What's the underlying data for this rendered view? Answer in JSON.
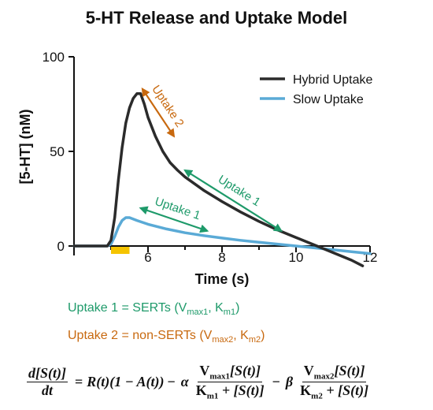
{
  "colors": {
    "hybrid": "#2b2b2b",
    "slow": "#5aaad6",
    "uptake1": "#1e9a6a",
    "uptake2": "#c8690f",
    "stim_bar": "#f5c400"
  },
  "chart_data": {
    "type": "line",
    "title": "5-HT Release and Uptake Model",
    "xlabel": "Time (s)",
    "ylabel": "[5-HT] (nM)",
    "xlim": [
      4,
      12
    ],
    "ylim": [
      -5,
      100
    ],
    "x_ticks": [
      "6",
      "8",
      "10",
      "12"
    ],
    "y_ticks": [
      "0",
      "50",
      "100"
    ],
    "legend_position": "top-right",
    "series": [
      {
        "name": "Hybrid Uptake",
        "color": "#2b2b2b",
        "points": [
          [
            4,
            0
          ],
          [
            4.9,
            0
          ],
          [
            5.0,
            3
          ],
          [
            5.1,
            15
          ],
          [
            5.2,
            35
          ],
          [
            5.3,
            52
          ],
          [
            5.4,
            65
          ],
          [
            5.5,
            73
          ],
          [
            5.6,
            78
          ],
          [
            5.7,
            80.5
          ],
          [
            5.8,
            80.5
          ],
          [
            5.9,
            75
          ],
          [
            6.0,
            68
          ],
          [
            6.2,
            58
          ],
          [
            6.4,
            50
          ],
          [
            6.6,
            44
          ],
          [
            6.8,
            40
          ],
          [
            7.0,
            36.5
          ],
          [
            7.5,
            29.5
          ],
          [
            8.0,
            23.5
          ],
          [
            8.5,
            18
          ],
          [
            9.0,
            13
          ],
          [
            9.5,
            8.5
          ],
          [
            10.0,
            4.5
          ],
          [
            10.5,
            0.5
          ],
          [
            11.0,
            -3.5
          ],
          [
            11.5,
            -7.5
          ],
          [
            11.8,
            -10.5
          ]
        ]
      },
      {
        "name": "Slow Uptake",
        "color": "#5aaad6",
        "points": [
          [
            4,
            0
          ],
          [
            4.9,
            0
          ],
          [
            5.0,
            1
          ],
          [
            5.1,
            5
          ],
          [
            5.2,
            10
          ],
          [
            5.3,
            13.5
          ],
          [
            5.4,
            15
          ],
          [
            5.5,
            15
          ],
          [
            5.7,
            13.5
          ],
          [
            6.0,
            11.5
          ],
          [
            6.5,
            9
          ],
          [
            7.0,
            7
          ],
          [
            7.5,
            5.5
          ],
          [
            8.0,
            4.2
          ],
          [
            8.5,
            3
          ],
          [
            9.0,
            2
          ],
          [
            9.5,
            1
          ],
          [
            10.0,
            0
          ],
          [
            10.5,
            -1
          ],
          [
            11.0,
            -2
          ],
          [
            11.5,
            -3
          ],
          [
            12.0,
            -4
          ]
        ]
      }
    ],
    "stimulation_bar": {
      "x_start": 5.0,
      "x_end": 5.5
    },
    "annotations": [
      {
        "text": "Uptake 2",
        "color": "uptake2",
        "arrow_from": [
          5.85,
          83
        ],
        "arrow_to": [
          6.7,
          58
        ]
      },
      {
        "text": "Uptake 1",
        "color": "uptake1",
        "arrow_from": [
          7.0,
          40
        ],
        "arrow_to": [
          9.6,
          8
        ]
      },
      {
        "text": "Uptake 1",
        "color": "uptake1",
        "arrow_from": [
          5.8,
          20
        ],
        "arrow_to": [
          7.6,
          8
        ]
      }
    ]
  },
  "notes": {
    "line1_prefix": "Uptake 1 = SERTs (V",
    "line1_sub1": "max1",
    "line1_mid": ", K",
    "line1_sub2": "m1",
    "line1_suffix": ")",
    "line2_prefix": "Uptake 2 = non-SERTs (V",
    "line2_sub1": "max2",
    "line2_mid": ", K",
    "line2_sub2": "m2",
    "line2_suffix": ")"
  },
  "equation": {
    "lhs_num": "d[S(t)]",
    "lhs_den": "dt",
    "equals": "=",
    "release_term": "R(t)(1 − A(t))",
    "minus1": "−",
    "alpha": "α",
    "t1_num_v": "V",
    "t1_num_v_sub": "max1",
    "t1_num_rest": "[S(t)]",
    "t1_den_k": "K",
    "t1_den_k_sub": "m1",
    "t1_den_rest": " + [S(t)]",
    "minus2": "−",
    "beta": "β",
    "t2_num_v": "V",
    "t2_num_v_sub": "max2",
    "t2_num_rest": "[S(t)]",
    "t2_den_k": "K",
    "t2_den_k_sub": "m2",
    "t2_den_rest": " + [S(t)]"
  }
}
